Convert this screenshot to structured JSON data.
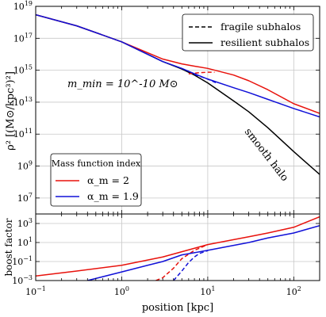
{
  "chart_data": [
    {
      "type": "line",
      "panel": "top",
      "xscale": "log",
      "yscale": "log",
      "xlim": [
        0.1,
        200
      ],
      "ylim": [
        1000000,
        10000000000000000000
      ],
      "xlabel": "",
      "ylabel": "ρ² [(M⊙/kpc³)²]",
      "yticks": [
        {
          "value": 10000000,
          "base": "10",
          "exp": "7"
        },
        {
          "value": 1000000000,
          "base": "10",
          "exp": "9"
        },
        {
          "value": 100000000000,
          "base": "10",
          "exp": "11"
        },
        {
          "value": 10000000000000,
          "base": "10",
          "exp": "13"
        },
        {
          "value": 1000000000000000,
          "base": "10",
          "exp": "15"
        },
        {
          "value": 100000000000000000,
          "base": "10",
          "exp": "17"
        },
        {
          "value": 10000000000000000000,
          "base": "10",
          "exp": "19"
        }
      ],
      "annotations": {
        "mmin": "m_min = 10^-10 M⊙",
        "smooth_halo": "smooth halo"
      },
      "legend_linestyle": {
        "position": "top-right",
        "entries": [
          {
            "label": "fragile subhalos",
            "style": "dashed",
            "color": "#000000"
          },
          {
            "label": "resilient subhalos",
            "style": "solid",
            "color": "#000000"
          }
        ]
      },
      "legend_mass": {
        "position": "bottom-left",
        "title": "Mass function index",
        "entries": [
          {
            "label": "α_m = 2",
            "color": "#e8120c"
          },
          {
            "label": "α_m = 1.9",
            "color": "#1010d8"
          }
        ]
      },
      "series": [
        {
          "key": "smooth",
          "color": "#000000",
          "dash": false,
          "x": [
            0.1,
            0.3,
            1,
            3,
            5,
            7,
            10,
            20,
            30,
            50,
            100,
            200
          ],
          "y": [
            3e+18,
            6e+17,
            6e+16,
            3500000000000000.0,
            1200000000000000.0,
            500000000000000.0,
            160000000000000.0,
            12000000000000.0,
            2500000000000.0,
            250000000000.0,
            8000000000.0,
            300000000.0
          ]
        },
        {
          "key": "red_resilient",
          "color": "#e8120c",
          "dash": false,
          "x": [
            0.1,
            0.3,
            1,
            3,
            5,
            7,
            10,
            20,
            30,
            50,
            100,
            200
          ],
          "y": [
            3e+18,
            6e+17,
            6e+16,
            5000000000000000.0,
            2500000000000000.0,
            1800000000000000.0,
            1300000000000000.0,
            500000000000000.0,
            220000000000000.0,
            60000000000000.0,
            8000000000000.0,
            2000000000000.0
          ]
        },
        {
          "key": "red_fragile",
          "color": "#e8120c",
          "dash": true,
          "x": [
            6,
            7,
            8,
            10,
            12
          ],
          "y": [
            600000000000000.0,
            650000000000000.0,
            700000000000000.0,
            750000000000000.0,
            750000000000000.0
          ]
        },
        {
          "key": "blue_resilient",
          "color": "#1010d8",
          "dash": false,
          "x": [
            0.1,
            0.3,
            1,
            3,
            5,
            7,
            10,
            20,
            30,
            50,
            100,
            200
          ],
          "y": [
            3e+18,
            6e+17,
            6e+16,
            3500000000000000.0,
            1300000000000000.0,
            600000000000000.0,
            280000000000000.0,
            80000000000000.0,
            40000000000000.0,
            15000000000000.0,
            4000000000000.0,
            1200000000000.0
          ]
        },
        {
          "key": "blue_fragile",
          "color": "#1010d8",
          "dash": true,
          "x": [
            7,
            10,
            13
          ],
          "y": [
            550000000000000.0,
            280000000000000.0,
            150000000000000.0
          ]
        }
      ]
    },
    {
      "type": "line",
      "panel": "bottom",
      "xscale": "log",
      "yscale": "log",
      "xlim": [
        0.1,
        200
      ],
      "ylim": [
        0.001,
        10000
      ],
      "xlabel": "position [kpc]",
      "ylabel": "boost factor",
      "xticks": [
        {
          "value": 0.1,
          "base": "10",
          "exp": "−1"
        },
        {
          "value": 1,
          "base": "10",
          "exp": "0"
        },
        {
          "value": 10,
          "base": "10",
          "exp": "1"
        },
        {
          "value": 100,
          "base": "10",
          "exp": "2"
        }
      ],
      "yticks": [
        {
          "value": 0.001,
          "base": "10",
          "exp": "−3"
        },
        {
          "value": 0.1,
          "base": "10",
          "exp": "−1"
        },
        {
          "value": 10,
          "base": "10",
          "exp": "1"
        },
        {
          "value": 1000,
          "base": "10",
          "exp": "3"
        }
      ],
      "series": [
        {
          "key": "red_resilient",
          "color": "#e8120c",
          "dash": false,
          "x": [
            0.1,
            0.3,
            1,
            3,
            10,
            20,
            30,
            50,
            100,
            200
          ],
          "y": [
            0.003,
            0.01,
            0.04,
            0.3,
            6,
            20,
            40,
            100,
            400,
            5000
          ]
        },
        {
          "key": "red_fragile",
          "color": "#e8120c",
          "dash": true,
          "x": [
            2.5,
            3,
            4,
            5,
            7,
            10
          ],
          "y": [
            0.001,
            0.002,
            0.02,
            0.2,
            1.5,
            6
          ]
        },
        {
          "key": "blue_resilient",
          "color": "#1010d8",
          "dash": false,
          "x": [
            0.4,
            1,
            2,
            3,
            5,
            10,
            20,
            30,
            50,
            100,
            200
          ],
          "y": [
            0.001,
            0.008,
            0.04,
            0.1,
            0.5,
            1.5,
            5,
            10,
            30,
            100,
            600
          ]
        },
        {
          "key": "blue_fragile",
          "color": "#1010d8",
          "dash": true,
          "x": [
            4,
            5,
            6,
            7,
            8,
            10
          ],
          "y": [
            0.001,
            0.01,
            0.08,
            0.3,
            0.7,
            1.4
          ]
        }
      ]
    }
  ]
}
